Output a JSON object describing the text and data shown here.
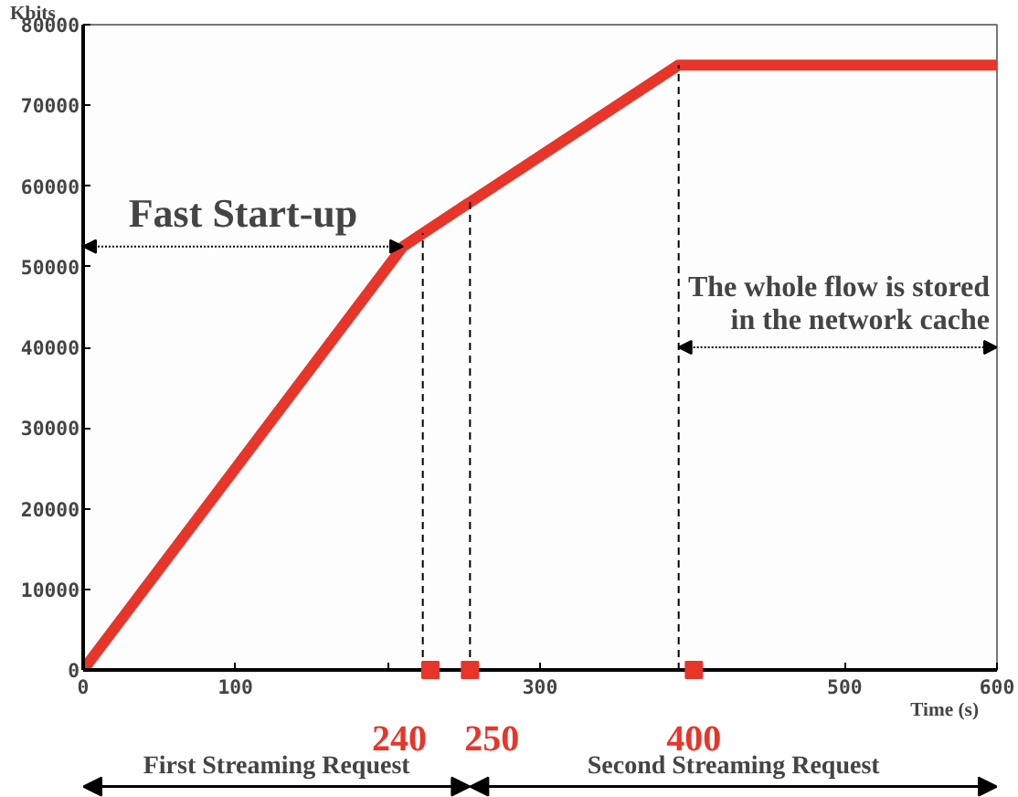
{
  "chart_data": {
    "type": "line",
    "xlabel": "Time (s)",
    "ylabel": "Kbits",
    "x": [
      0,
      210,
      254,
      391,
      600
    ],
    "series": [
      {
        "color": "#e8352a",
        "values": [
          0,
          52500,
          58000,
          75000,
          75000
        ]
      },
      {
        "type": "scatter",
        "marker": "square",
        "color": "#e8352a",
        "x": [
          228,
          254,
          401
        ],
        "values": [
          0,
          0,
          0
        ]
      }
    ],
    "xlim": [
      0,
      600
    ],
    "ylim": [
      0,
      80000
    ],
    "xticks": [
      0,
      100,
      {
        "value": 200,
        "label": null
      },
      300,
      {
        "value": 400,
        "label": null
      },
      500,
      600
    ],
    "yticks": [
      0,
      10000,
      20000,
      30000,
      40000,
      50000,
      60000,
      70000,
      80000
    ],
    "ref_lines": [
      {
        "axis": "x",
        "value": 223,
        "line_style": "dashed"
      },
      {
        "axis": "x",
        "value": 254,
        "line_style": "dashed"
      },
      {
        "axis": "x",
        "value": 391,
        "line_style": "dashed"
      }
    ],
    "annotations": [
      "Fast Start-up",
      "The whole flow is stored\nin the network cache",
      "First Streaming Request",
      "Second Streaming Request",
      "240",
      "250",
      "400"
    ],
    "grid": false,
    "line_style": "solid",
    "marker": "none"
  }
}
